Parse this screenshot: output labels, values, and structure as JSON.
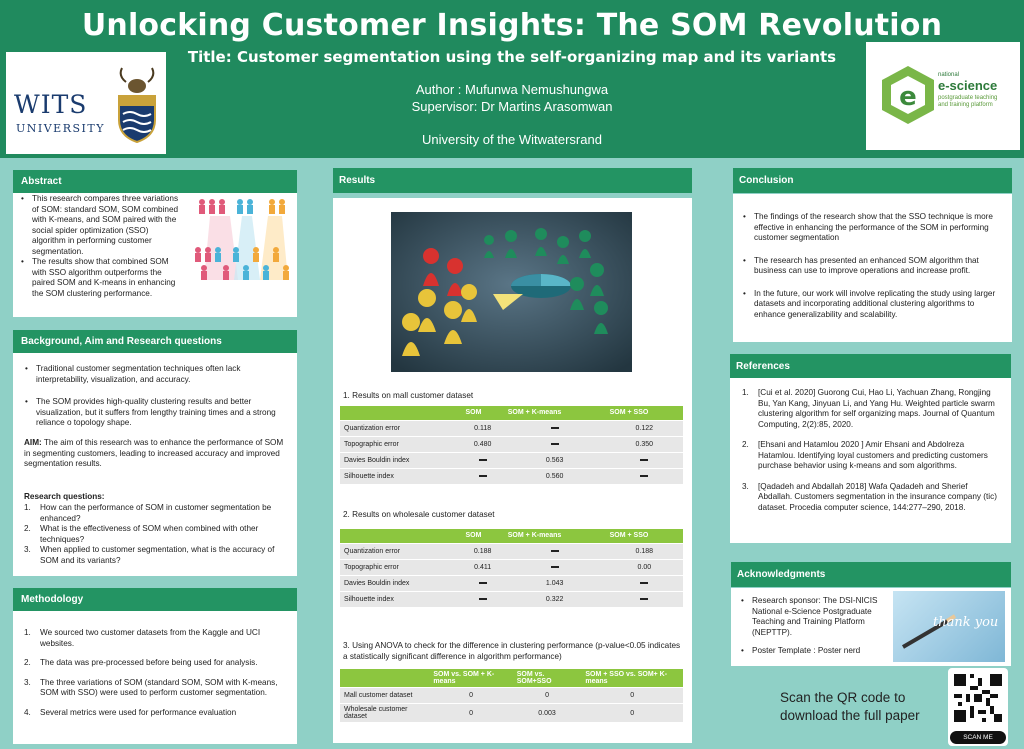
{
  "header": {
    "title": "Unlocking Customer Insights: The SOM Revolution",
    "subtitle": "Title: Customer segmentation using the self-organizing map and its variants",
    "author": "Author : Mufunwa Nemushungwa",
    "supervisor": "Supervisor: Dr Martins Arasomwan",
    "university": "University of the Witwatersrand",
    "wits_logo_text": "WITS",
    "wits_logo_sub": "UNIVERSITY",
    "nesci_small": "national",
    "nesci_big": "e-science",
    "nesci_line1": "postgraduate teaching",
    "nesci_line2": "and training platform"
  },
  "abstract": {
    "heading": "Abstract",
    "bullets": [
      "This research compares three variations of SOM: standard SOM, SOM combined with K-means, and SOM paired with the social spider optimization (SSO) algorithm in performing customer segmentation.",
      "The results show that combined SOM with SSO algorithm outperforms the paired SOM and K-means in enhancing the SOM clustering performance."
    ]
  },
  "background": {
    "heading": "Background, Aim and Research questions",
    "bullets": [
      "Traditional customer segmentation techniques often lack interpretability, visualization, and accuracy.",
      "The SOM provides high-quality clustering results and better visualization, but it suffers from lengthy training times and a strong reliance o topology shape."
    ],
    "aim_label": "AIM:",
    "aim_text": " The aim of this research was to enhance the performance of SOM in segmenting customers, leading to increased accuracy and improved segmentation results.",
    "rq_heading": "Research questions:",
    "questions": [
      {
        "num": "1.",
        "text": "How can the performance of SOM in customer segmentation be enhanced?"
      },
      {
        "num": "2.",
        "text": "What is the effectiveness of SOM when combined with other techniques?"
      },
      {
        "num": "3.",
        "text": "When applied to customer segmentation, what is the accuracy of SOM and its variants?"
      }
    ]
  },
  "methodology": {
    "heading": "Methodology",
    "items": [
      {
        "num": "1.",
        "text": "We sourced two customer datasets from the Kaggle and UCI websites."
      },
      {
        "num": "2.",
        "text": "The data was pre-processed before being used for analysis."
      },
      {
        "num": "3.",
        "text": "The three variations of SOM (standard SOM, SOM with K-means, SOM with SSO) were used  to perform customer segmentation."
      },
      {
        "num": "4.",
        "text": "Several metrics were used for performance evaluation"
      }
    ]
  },
  "results": {
    "heading": "Results",
    "t1": {
      "caption": "1. Results on mall customer dataset",
      "headers": [
        "",
        "SOM",
        "SOM + K-means",
        "SOM + SSO"
      ],
      "rows": [
        [
          "Quantization error",
          "0.118",
          "—",
          "0.122"
        ],
        [
          "Topographic error",
          "0.480",
          "—",
          "0.350"
        ],
        [
          "Davies Bouldin index",
          "—",
          "0.563",
          "—"
        ],
        [
          "Silhouette index",
          "—",
          "0.560",
          "—"
        ]
      ]
    },
    "t2": {
      "caption": "2. Results on wholesale customer dataset",
      "headers": [
        "",
        "SOM",
        "SOM + K-means",
        "SOM + SSO"
      ],
      "rows": [
        [
          "Quantization error",
          "0.188",
          "—",
          "0.188"
        ],
        [
          "Topographic error",
          "0.411",
          "—",
          "0.00"
        ],
        [
          "Davies Bouldin index",
          "—",
          "1.043",
          "—"
        ],
        [
          "Silhouette index",
          "—",
          "0.322",
          "—"
        ]
      ]
    },
    "t3": {
      "caption": "3. Using ANOVA to check for the difference in clustering performance (p-value<0.05 indicates a statistically significant difference in algorithm performance)",
      "headers": [
        "",
        "SOM vs. SOM + K-means",
        "SOM  vs. SOM+SSO",
        "SOM + SSO vs. SOM+ K-means"
      ],
      "rows": [
        [
          "Mall customer dataset",
          "0",
          "0",
          "0"
        ],
        [
          "Wholesale customer dataset",
          "0",
          "0.003",
          "0"
        ]
      ]
    }
  },
  "conclusion": {
    "heading": "Conclusion",
    "bullets": [
      "The findings of the research  show that the SSO technique is more effective in enhancing the  performance of the SOM in performing customer segmentation",
      "The research has presented an enhanced SOM algorithm that business can use to improve operations and increase profit.",
      "In the future, our work will involve replicating the study using larger datasets and incorporating additional clustering algorithms to enhance generalizability and scalability."
    ]
  },
  "references": {
    "heading": "References",
    "items": [
      {
        "num": "1.",
        "text": "[Cui et al. 2020] Guorong Cui, Hao Li, Yachuan Zhang, Rongjing Bu, Yan Kang, Jinyuan Li, and Yang Hu. Weighted particle swarm clustering algorithm for self organizing maps. Journal of Quantum Computing, 2(2):85, 2020."
      },
      {
        "num": "2.",
        "text": "[Ehsani and Hatamlou 2020 ] Amir Ehsani and Abdolreza Hatamlou. Identifying loyal customers and predicting customers purchase behavior using k-means and som algorithms."
      },
      {
        "num": "3.",
        "text": "[Qadadeh and Abdallah 2018] Wafa Qadadeh and Sherief Abdallah. Customers segmentation in the insurance company (tic) dataset. Procedia computer science, 144:277–290, 2018."
      }
    ]
  },
  "acknowledgments": {
    "heading": "Acknowledgments",
    "bullets": [
      "Research sponsor: The DSI-NICIS National e-Science Postgraduate Teaching and Training Platform (NEPTTP).",
      "Poster Template : Poster nerd"
    ],
    "image_text": "thank you"
  },
  "qr": {
    "text1": "Scan the QR code to",
    "text2": "download the full paper",
    "badge": "SCAN ME"
  }
}
